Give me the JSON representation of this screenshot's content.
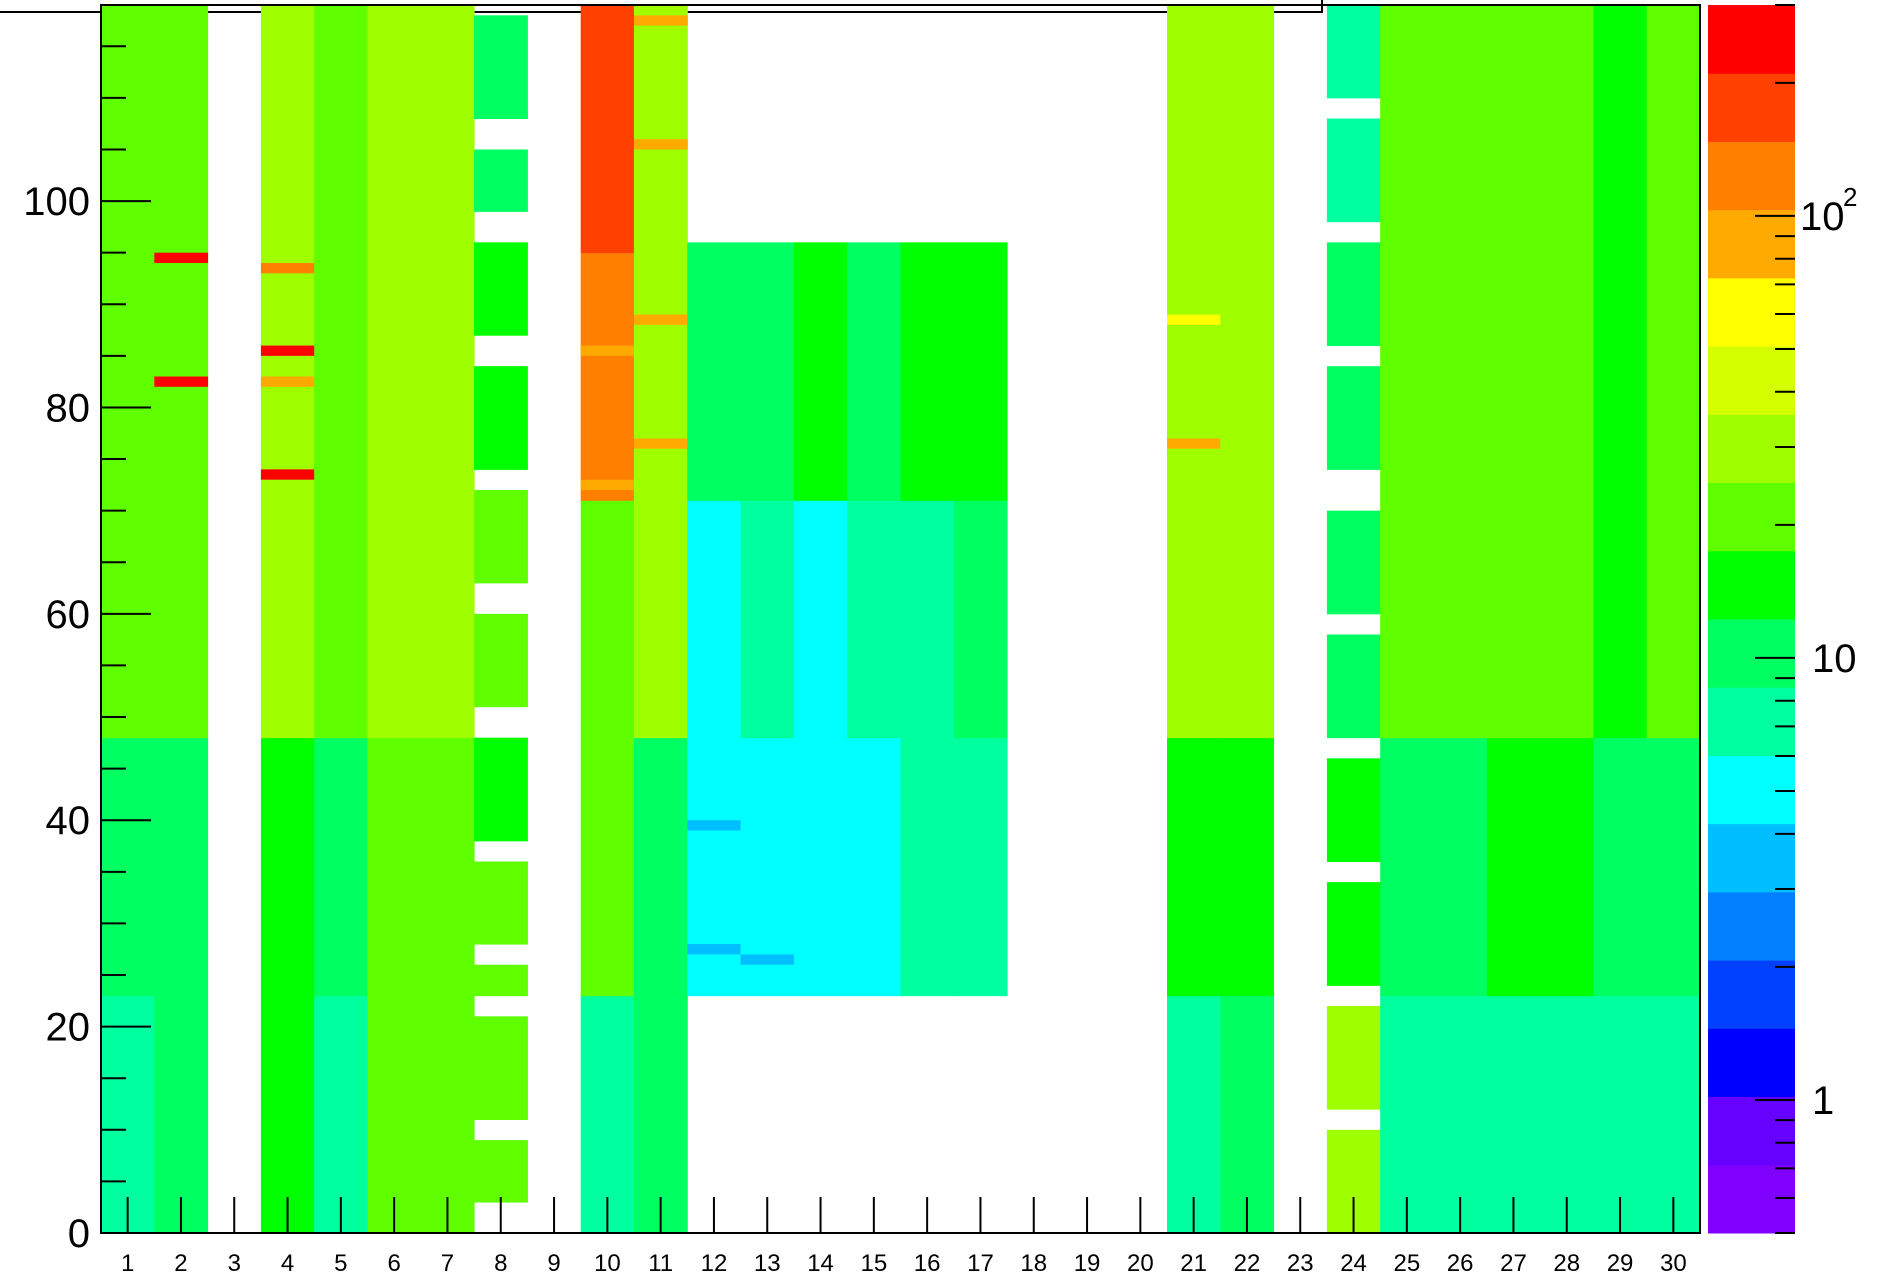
{
  "chart_data": {
    "type": "heatmap",
    "title": "",
    "xlabel": "",
    "ylabel": "",
    "x_categories": [
      "1",
      "2",
      "3",
      "4",
      "5",
      "6",
      "7",
      "8",
      "9",
      "10",
      "11",
      "12",
      "13",
      "14",
      "15",
      "16",
      "17",
      "18",
      "19",
      "20",
      "21",
      "22",
      "23",
      "24",
      "25",
      "26",
      "27",
      "28",
      "29",
      "30"
    ],
    "ylim": [
      0,
      119
    ],
    "y_ticks": [
      0,
      20,
      40,
      60,
      80,
      100
    ],
    "y_tick_labels": [
      "0",
      "20",
      "40",
      "60",
      "80",
      "100"
    ],
    "colorbar": {
      "scale": "log",
      "range": [
        0.5,
        300
      ],
      "tick_labels": [
        {
          "value": 1,
          "text": "1"
        },
        {
          "value": 10,
          "text": "10"
        },
        {
          "value": 100,
          "base": "10",
          "exp": "2"
        }
      ],
      "palette": [
        "#7f00ff",
        "#6600ff",
        "#0000ff",
        "#0040ff",
        "#007fff",
        "#00bfff",
        "#00ffff",
        "#00ff9f",
        "#00ff60",
        "#00ff00",
        "#60ff00",
        "#9fff00",
        "#d4ff00",
        "#ffff00",
        "#ffaa00",
        "#ff7f00",
        "#ff4000",
        "#ff0000"
      ]
    },
    "columns": [
      {
        "col": 1,
        "bands": [
          {
            "y0": 0,
            "y1": 23,
            "value": 7
          },
          {
            "y0": 23,
            "y1": 48,
            "value": 11
          },
          {
            "y0": 48,
            "y1": 119,
            "value": 20
          }
        ]
      },
      {
        "col": 2,
        "bands": [
          {
            "y0": 0,
            "y1": 23,
            "value": 9
          },
          {
            "y0": 23,
            "y1": 48,
            "value": 11
          },
          {
            "y0": 48,
            "y1": 119,
            "value": 22
          }
        ],
        "hot": [
          {
            "y": 94,
            "value": 290
          },
          {
            "y": 82,
            "value": 290
          }
        ]
      },
      {
        "col": 3,
        "bands": []
      },
      {
        "col": 4,
        "bands": [
          {
            "y0": 0,
            "y1": 48,
            "value": 17
          },
          {
            "y0": 48,
            "y1": 119,
            "value": 35
          }
        ],
        "hot": [
          {
            "y": 93,
            "value": 110
          },
          {
            "y": 85,
            "value": 290
          },
          {
            "y": 82,
            "value": 90
          },
          {
            "y": 73,
            "value": 290
          }
        ]
      },
      {
        "col": 5,
        "bands": [
          {
            "y0": 0,
            "y1": 23,
            "value": 8
          },
          {
            "y0": 23,
            "y1": 48,
            "value": 12
          },
          {
            "y0": 48,
            "y1": 119,
            "value": 20
          }
        ]
      },
      {
        "col": 6,
        "bands": [
          {
            "y0": 0,
            "y1": 48,
            "value": 18
          },
          {
            "y0": 48,
            "y1": 119,
            "value": 32
          }
        ]
      },
      {
        "col": 7,
        "bands": [
          {
            "y0": 0,
            "y1": 48,
            "value": 20
          },
          {
            "y0": 48,
            "y1": 119,
            "value": 30
          }
        ]
      },
      {
        "col": 8,
        "bands": [
          {
            "y0": 3,
            "y1": 9,
            "value": 22
          },
          {
            "y0": 11,
            "y1": 21,
            "value": 22
          },
          {
            "y0": 23,
            "y1": 26,
            "value": 18
          },
          {
            "y0": 28,
            "y1": 36,
            "value": 18
          },
          {
            "y0": 38,
            "y1": 48,
            "value": 15
          },
          {
            "y0": 51,
            "y1": 60,
            "value": 20
          },
          {
            "y0": 63,
            "y1": 72,
            "value": 20
          },
          {
            "y0": 74,
            "y1": 84,
            "value": 13
          },
          {
            "y0": 87,
            "y1": 96,
            "value": 13
          },
          {
            "y0": 99,
            "y1": 105,
            "value": 12
          },
          {
            "y0": 108,
            "y1": 118,
            "value": 11
          }
        ]
      },
      {
        "col": 9,
        "bands": []
      },
      {
        "col": 10,
        "bands": [
          {
            "y0": 0,
            "y1": 23,
            "value": 7
          },
          {
            "y0": 23,
            "y1": 71,
            "value": 19
          },
          {
            "y0": 71,
            "y1": 95,
            "value": 140
          },
          {
            "y0": 95,
            "y1": 119,
            "value": 200
          }
        ],
        "hot": [
          {
            "y": 72,
            "value": 100
          },
          {
            "y": 85,
            "value": 100
          }
        ]
      },
      {
        "col": 11,
        "bands": [
          {
            "y0": 0,
            "y1": 23,
            "value": 10
          },
          {
            "y0": 23,
            "y1": 48,
            "value": 12
          },
          {
            "y0": 48,
            "y1": 119,
            "value": 25
          }
        ],
        "hot": [
          {
            "y": 76,
            "value": 95
          },
          {
            "y": 88,
            "value": 90
          },
          {
            "y": 105,
            "value": 80
          },
          {
            "y": 117,
            "value": 80
          }
        ]
      },
      {
        "col": 12,
        "bands": [
          {
            "y0": 23,
            "y1": 48,
            "value": 5.5
          },
          {
            "y0": 48,
            "y1": 71,
            "value": 6
          },
          {
            "y0": 71,
            "y1": 96,
            "value": 10
          }
        ],
        "hot": [
          {
            "y": 27,
            "value": 3.5
          },
          {
            "y": 39,
            "value": 3.5
          }
        ]
      },
      {
        "col": 13,
        "bands": [
          {
            "y0": 23,
            "y1": 48,
            "value": 5.5
          },
          {
            "y0": 48,
            "y1": 71,
            "value": 6.5
          },
          {
            "y0": 71,
            "y1": 96,
            "value": 11
          }
        ],
        "hot": [
          {
            "y": 26,
            "value": 3.5
          }
        ]
      },
      {
        "col": 14,
        "bands": [
          {
            "y0": 23,
            "y1": 48,
            "value": 5.5
          },
          {
            "y0": 48,
            "y1": 71,
            "value": 6
          },
          {
            "y0": 71,
            "y1": 96,
            "value": 17
          }
        ]
      },
      {
        "col": 15,
        "bands": [
          {
            "y0": 23,
            "y1": 48,
            "value": 6
          },
          {
            "y0": 48,
            "y1": 71,
            "value": 6.5
          },
          {
            "y0": 71,
            "y1": 96,
            "value": 11
          }
        ]
      },
      {
        "col": 16,
        "bands": [
          {
            "y0": 23,
            "y1": 48,
            "value": 6.5
          },
          {
            "y0": 48,
            "y1": 71,
            "value": 8
          },
          {
            "y0": 71,
            "y1": 96,
            "value": 15
          }
        ]
      },
      {
        "col": 17,
        "bands": [
          {
            "y0": 23,
            "y1": 48,
            "value": 7
          },
          {
            "y0": 48,
            "y1": 71,
            "value": 12
          },
          {
            "y0": 71,
            "y1": 96,
            "value": 15
          }
        ]
      },
      {
        "col": 18,
        "bands": []
      },
      {
        "col": 19,
        "bands": []
      },
      {
        "col": 20,
        "bands": []
      },
      {
        "col": 21,
        "bands": [
          {
            "y0": 0,
            "y1": 23,
            "value": 8
          },
          {
            "y0": 23,
            "y1": 48,
            "value": 13
          },
          {
            "y0": 48,
            "y1": 119,
            "value": 26
          }
        ],
        "hot": [
          {
            "y": 76,
            "value": 80
          },
          {
            "y": 88,
            "value": 70
          }
        ]
      },
      {
        "col": 22,
        "bands": [
          {
            "y0": 0,
            "y1": 23,
            "value": 11
          },
          {
            "y0": 23,
            "y1": 48,
            "value": 17
          },
          {
            "y0": 48,
            "y1": 119,
            "value": 27
          }
        ]
      },
      {
        "col": 23,
        "bands": []
      },
      {
        "col": 24,
        "bands": [
          {
            "y0": 0,
            "y1": 10,
            "value": 25
          },
          {
            "y0": 12,
            "y1": 22,
            "value": 28
          },
          {
            "y0": 24,
            "y1": 34,
            "value": 16
          },
          {
            "y0": 36,
            "y1": 46,
            "value": 14
          },
          {
            "y0": 48,
            "y1": 58,
            "value": 12
          },
          {
            "y0": 60,
            "y1": 70,
            "value": 11
          },
          {
            "y0": 74,
            "y1": 84,
            "value": 10
          },
          {
            "y0": 86,
            "y1": 96,
            "value": 11
          },
          {
            "y0": 98,
            "y1": 108,
            "value": 7
          },
          {
            "y0": 110,
            "y1": 119,
            "value": 7
          }
        ]
      },
      {
        "col": 25,
        "bands": [
          {
            "y0": 0,
            "y1": 23,
            "value": 7
          },
          {
            "y0": 23,
            "y1": 48,
            "value": 11
          },
          {
            "y0": 48,
            "y1": 119,
            "value": 19
          }
        ]
      },
      {
        "col": 26,
        "bands": [
          {
            "y0": 0,
            "y1": 23,
            "value": 7
          },
          {
            "y0": 23,
            "y1": 48,
            "value": 12
          },
          {
            "y0": 48,
            "y1": 119,
            "value": 18
          }
        ]
      },
      {
        "col": 27,
        "bands": [
          {
            "y0": 0,
            "y1": 23,
            "value": 8
          },
          {
            "y0": 23,
            "y1": 48,
            "value": 15
          },
          {
            "y0": 48,
            "y1": 119,
            "value": 20
          }
        ]
      },
      {
        "col": 28,
        "bands": [
          {
            "y0": 0,
            "y1": 23,
            "value": 8
          },
          {
            "y0": 23,
            "y1": 48,
            "value": 13
          },
          {
            "y0": 48,
            "y1": 119,
            "value": 19
          }
        ]
      },
      {
        "col": 29,
        "bands": [
          {
            "y0": 0,
            "y1": 23,
            "value": 7
          },
          {
            "y0": 23,
            "y1": 48,
            "value": 11
          },
          {
            "y0": 48,
            "y1": 119,
            "value": 17
          }
        ]
      },
      {
        "col": 30,
        "bands": [
          {
            "y0": 0,
            "y1": 23,
            "value": 7
          },
          {
            "y0": 23,
            "y1": 48,
            "value": 10
          },
          {
            "y0": 48,
            "y1": 119,
            "value": 22
          }
        ]
      }
    ]
  }
}
